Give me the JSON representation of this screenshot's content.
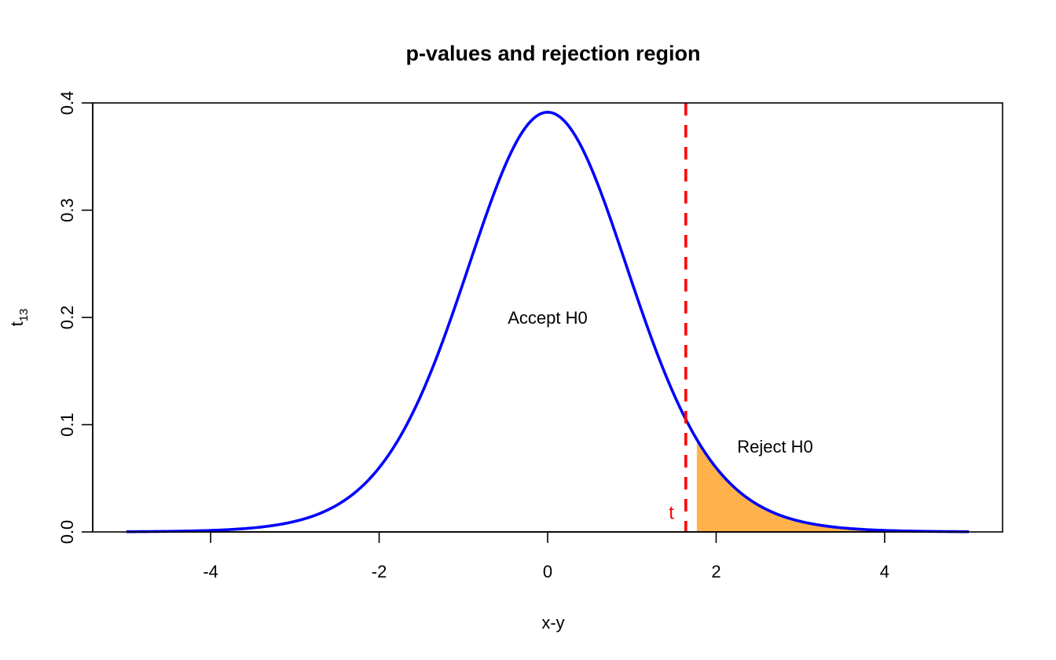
{
  "chart_data": {
    "type": "line",
    "title": "p-values and rejection region",
    "xlabel": "x-y",
    "ylabel": {
      "base": "t",
      "subscript": "13"
    },
    "distribution": "t",
    "df": 13,
    "x_range": [
      -5,
      5
    ],
    "xlim": [
      -5.4,
      5.4
    ],
    "ylim": [
      0.0,
      0.4
    ],
    "x_ticks": [
      -4,
      -2,
      0,
      2,
      4
    ],
    "x_tick_labels": [
      "-4",
      "-2",
      "0",
      "2",
      "4"
    ],
    "y_ticks": [
      0.0,
      0.1,
      0.2,
      0.3,
      0.4
    ],
    "y_tick_labels": [
      "0.0",
      "0.1",
      "0.2",
      "0.3",
      "0.4"
    ],
    "grid": false,
    "critical_value": 1.771,
    "t_statistic": 1.64,
    "series": [
      {
        "values_from": "t density, df = 13",
        "color": "#0000ff"
      }
    ],
    "reject_region": {
      "from": 1.771,
      "to": 5,
      "color": "#ffb24b"
    },
    "annotations": [
      {
        "text": "Accept H0",
        "x": 0,
        "y": 0.2
      },
      {
        "text": "Reject H0",
        "x": 2.7,
        "y": 0.08
      },
      {
        "text": "t",
        "x": 1.47,
        "y": 0.018,
        "color": "#ff0000"
      }
    ],
    "vline": {
      "x": 1.64,
      "color": "#ff0000",
      "style": "dashed"
    }
  }
}
